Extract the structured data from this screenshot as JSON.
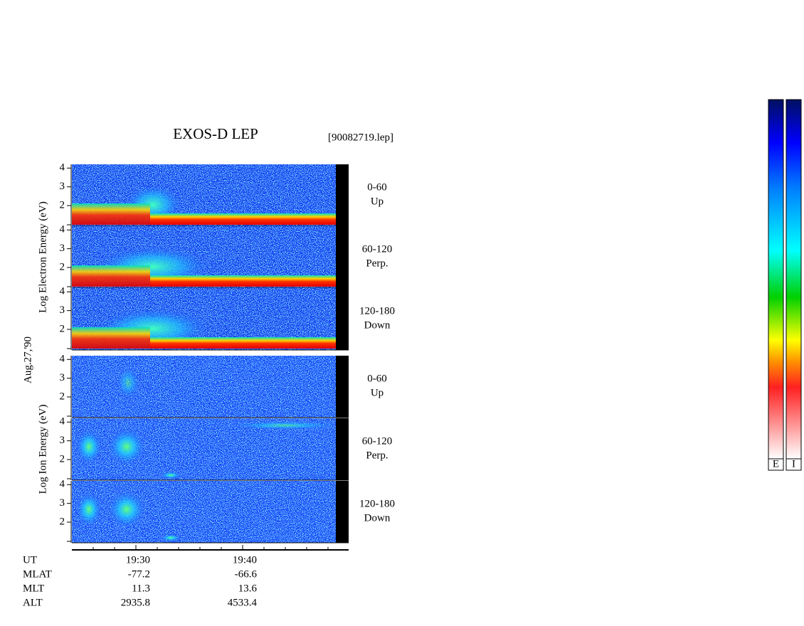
{
  "chart_data": {
    "type": "spectrogram",
    "title": "EXOS-D LEP",
    "file_label": "[90082719.lep]",
    "date_label": "Aug.27,'90",
    "ylim": [
      0.9,
      4.2
    ],
    "yticks": [
      2,
      3,
      4
    ],
    "groups": [
      {
        "ylabel": "Log Electron Energy (eV)",
        "kind": "electron",
        "panels": [
          {
            "label": "0-60",
            "sublabel": "Up"
          },
          {
            "label": "60-120",
            "sublabel": "Perp."
          },
          {
            "label": "120-180",
            "sublabel": "Down"
          }
        ]
      },
      {
        "ylabel": "Log Ion Energy (eV)",
        "kind": "ion",
        "panels": [
          {
            "label": "0-60",
            "sublabel": "Up"
          },
          {
            "label": "60-120",
            "sublabel": "Perp."
          },
          {
            "label": "120-180",
            "sublabel": "Down"
          }
        ]
      }
    ],
    "ephemeris": [
      {
        "label": "UT",
        "values": [
          "19:30",
          "19:40"
        ]
      },
      {
        "label": "MLAT",
        "values": [
          -77.2,
          -66.6
        ]
      },
      {
        "label": "MLT",
        "values": [
          11.3,
          13.6
        ]
      },
      {
        "label": "ALT",
        "values": [
          2935.8,
          4533.4
        ]
      }
    ],
    "colorbars": [
      "E",
      "I"
    ]
  }
}
